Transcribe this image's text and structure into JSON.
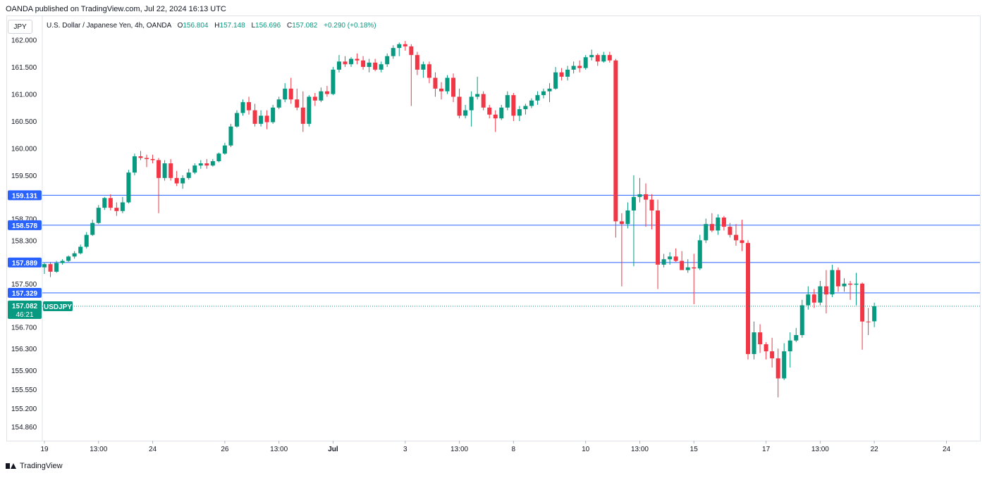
{
  "header": {
    "published": "OANDA published on TradingView.com, Jul 22, 2024 16:13 UTC",
    "currency": "JPY"
  },
  "legend": {
    "title": "U.S. Dollar / Japanese Yen, 4h, OANDA",
    "o_label": "O",
    "o": "156.804",
    "h_label": "H",
    "h": "157.148",
    "l_label": "L",
    "l": "156.696",
    "c_label": "C",
    "c": "157.082",
    "change": "+0.290 (+0.18%)"
  },
  "brand": {
    "name": "TradingView"
  },
  "colors": {
    "up": "#089981",
    "down": "#f23645",
    "level": "#2962ff",
    "grid": "#e0e3eb",
    "text": "#131722"
  },
  "chart_data": {
    "type": "candlestick",
    "symbol": "USDJPY",
    "interval": "4h",
    "ylim": [
      154.6,
      162.45
    ],
    "price_ticks": [
      "162.000",
      "161.500",
      "161.000",
      "160.500",
      "160.000",
      "159.500",
      "158.700",
      "158.300",
      "157.500",
      "156.700",
      "156.300",
      "155.900",
      "155.550",
      "155.200",
      "154.860"
    ],
    "time_ticks": [
      {
        "label": "19",
        "bar": 0
      },
      {
        "label": "13:00",
        "bar": 9
      },
      {
        "label": "24",
        "bar": 18
      },
      {
        "label": "26",
        "bar": 30
      },
      {
        "label": "13:00",
        "bar": 39
      },
      {
        "label": "Jul",
        "bar": 48
      },
      {
        "label": "3",
        "bar": 60
      },
      {
        "label": "13:00",
        "bar": 69
      },
      {
        "label": "8",
        "bar": 78
      },
      {
        "label": "10",
        "bar": 90
      },
      {
        "label": "13:00",
        "bar": 99
      },
      {
        "label": "15",
        "bar": 108
      },
      {
        "label": "17",
        "bar": 120
      },
      {
        "label": "13:00",
        "bar": 129
      },
      {
        "label": "22",
        "bar": 138
      },
      {
        "label": "24",
        "bar": 150
      }
    ],
    "levels": [
      "159.131",
      "158.578",
      "157.889",
      "157.329"
    ],
    "last_price": "157.082",
    "countdown": "46:21",
    "last_label": "USDJPY",
    "candles": [
      [
        157.8,
        157.88,
        157.68,
        157.86
      ],
      [
        157.86,
        157.9,
        157.62,
        157.72
      ],
      [
        157.72,
        157.92,
        157.7,
        157.88
      ],
      [
        157.88,
        157.95,
        157.85,
        157.92
      ],
      [
        157.92,
        158.02,
        157.9,
        158.0
      ],
      [
        158.0,
        158.1,
        157.96,
        158.06
      ],
      [
        158.06,
        158.22,
        158.04,
        158.18
      ],
      [
        158.18,
        158.45,
        158.15,
        158.4
      ],
      [
        158.4,
        158.68,
        158.38,
        158.62
      ],
      [
        158.62,
        158.95,
        158.6,
        158.9
      ],
      [
        158.9,
        159.1,
        158.86,
        159.08
      ],
      [
        159.08,
        159.15,
        158.85,
        158.9
      ],
      [
        158.9,
        159.0,
        158.75,
        158.84
      ],
      [
        158.84,
        159.1,
        158.8,
        159.0
      ],
      [
        159.0,
        159.6,
        158.98,
        159.55
      ],
      [
        159.55,
        159.9,
        159.5,
        159.85
      ],
      [
        159.85,
        159.95,
        159.78,
        159.82
      ],
      [
        159.82,
        159.88,
        159.65,
        159.8
      ],
      [
        159.8,
        159.88,
        159.72,
        159.78
      ],
      [
        159.78,
        159.82,
        158.8,
        159.45
      ],
      [
        159.45,
        159.78,
        159.4,
        159.72
      ],
      [
        159.72,
        159.8,
        159.4,
        159.45
      ],
      [
        159.45,
        159.58,
        159.3,
        159.35
      ],
      [
        159.35,
        159.5,
        159.25,
        159.45
      ],
      [
        159.45,
        159.62,
        159.42,
        159.55
      ],
      [
        159.55,
        159.72,
        159.52,
        159.68
      ],
      [
        159.68,
        159.78,
        159.62,
        159.72
      ],
      [
        159.72,
        159.8,
        159.62,
        159.68
      ],
      [
        159.68,
        159.8,
        159.66,
        159.76
      ],
      [
        159.76,
        159.92,
        159.74,
        159.9
      ],
      [
        159.9,
        160.1,
        159.88,
        160.05
      ],
      [
        160.05,
        160.45,
        160.02,
        160.4
      ],
      [
        160.4,
        160.7,
        160.38,
        160.65
      ],
      [
        160.65,
        160.9,
        160.6,
        160.85
      ],
      [
        160.85,
        160.95,
        160.62,
        160.7
      ],
      [
        160.7,
        160.82,
        160.4,
        160.45
      ],
      [
        160.45,
        160.7,
        160.4,
        160.6
      ],
      [
        160.6,
        160.7,
        160.35,
        160.48
      ],
      [
        160.48,
        160.8,
        160.45,
        160.75
      ],
      [
        160.75,
        160.95,
        160.72,
        160.9
      ],
      [
        160.9,
        161.2,
        160.85,
        161.1
      ],
      [
        161.1,
        161.3,
        160.82,
        160.9
      ],
      [
        160.9,
        161.1,
        160.7,
        160.75
      ],
      [
        160.75,
        161.05,
        160.3,
        160.45
      ],
      [
        160.45,
        160.98,
        160.4,
        160.95
      ],
      [
        160.95,
        161.02,
        160.78,
        160.88
      ],
      [
        160.88,
        161.12,
        160.85,
        161.05
      ],
      [
        161.05,
        161.15,
        160.95,
        161.0
      ],
      [
        161.0,
        161.5,
        160.98,
        161.45
      ],
      [
        161.45,
        161.72,
        161.4,
        161.6
      ],
      [
        161.6,
        161.7,
        161.5,
        161.55
      ],
      [
        161.55,
        161.68,
        161.5,
        161.65
      ],
      [
        161.65,
        161.75,
        161.55,
        161.62
      ],
      [
        161.62,
        161.7,
        161.45,
        161.5
      ],
      [
        161.5,
        161.65,
        161.4,
        161.58
      ],
      [
        161.58,
        161.65,
        161.42,
        161.45
      ],
      [
        161.45,
        161.6,
        161.4,
        161.55
      ],
      [
        161.55,
        161.75,
        161.5,
        161.7
      ],
      [
        161.7,
        161.9,
        161.65,
        161.85
      ],
      [
        161.85,
        161.95,
        161.7,
        161.92
      ],
      [
        161.92,
        161.98,
        161.8,
        161.88
      ],
      [
        161.88,
        161.92,
        160.78,
        161.72
      ],
      [
        161.72,
        161.78,
        161.35,
        161.45
      ],
      [
        161.45,
        161.6,
        161.3,
        161.55
      ],
      [
        161.55,
        161.6,
        161.2,
        161.3
      ],
      [
        161.3,
        161.4,
        160.95,
        161.1
      ],
      [
        161.1,
        161.22,
        160.9,
        161.05
      ],
      [
        161.05,
        161.35,
        161.0,
        161.3
      ],
      [
        161.3,
        161.38,
        160.85,
        160.95
      ],
      [
        160.95,
        161.1,
        160.55,
        160.6
      ],
      [
        160.6,
        160.8,
        160.55,
        160.7
      ],
      [
        160.7,
        161.05,
        160.4,
        160.95
      ],
      [
        160.95,
        161.32,
        160.9,
        161.0
      ],
      [
        161.0,
        161.05,
        160.7,
        160.75
      ],
      [
        160.75,
        160.8,
        160.55,
        160.62
      ],
      [
        160.62,
        160.7,
        160.3,
        160.55
      ],
      [
        160.55,
        160.8,
        160.52,
        160.75
      ],
      [
        160.75,
        161.05,
        160.7,
        160.98
      ],
      [
        160.98,
        161.02,
        160.5,
        160.6
      ],
      [
        160.6,
        160.78,
        160.5,
        160.72
      ],
      [
        160.72,
        160.82,
        160.62,
        160.78
      ],
      [
        160.78,
        160.92,
        160.74,
        160.88
      ],
      [
        160.88,
        161.05,
        160.8,
        160.98
      ],
      [
        160.98,
        161.1,
        160.92,
        161.05
      ],
      [
        161.05,
        161.2,
        160.85,
        161.1
      ],
      [
        161.1,
        161.5,
        161.08,
        161.4
      ],
      [
        161.4,
        161.48,
        161.25,
        161.32
      ],
      [
        161.32,
        161.52,
        161.25,
        161.45
      ],
      [
        161.45,
        161.6,
        161.38,
        161.52
      ],
      [
        161.52,
        161.62,
        161.4,
        161.48
      ],
      [
        161.48,
        161.72,
        161.45,
        161.68
      ],
      [
        161.68,
        161.82,
        161.62,
        161.72
      ],
      [
        161.72,
        161.75,
        161.52,
        161.6
      ],
      [
        161.6,
        161.78,
        161.58,
        161.72
      ],
      [
        161.72,
        161.78,
        161.58,
        161.62
      ],
      [
        161.62,
        161.65,
        158.35,
        158.65
      ],
      [
        158.65,
        158.8,
        157.45,
        158.6
      ],
      [
        158.6,
        159.0,
        158.52,
        158.85
      ],
      [
        158.85,
        159.5,
        157.82,
        159.1
      ],
      [
        159.1,
        159.45,
        159.0,
        159.15
      ],
      [
        159.15,
        159.35,
        158.55,
        159.05
      ],
      [
        159.05,
        159.15,
        158.5,
        158.85
      ],
      [
        158.85,
        159.05,
        157.4,
        157.85
      ],
      [
        157.85,
        158.05,
        157.8,
        157.95
      ],
      [
        157.95,
        158.08,
        157.85,
        158.0
      ],
      [
        158.0,
        158.15,
        157.9,
        157.92
      ],
      [
        157.92,
        158.1,
        157.8,
        157.75
      ],
      [
        157.75,
        157.95,
        157.7,
        157.8
      ],
      [
        157.8,
        158.05,
        157.12,
        157.78
      ],
      [
        157.78,
        158.4,
        157.75,
        158.3
      ],
      [
        158.3,
        158.7,
        158.25,
        158.6
      ],
      [
        158.6,
        158.8,
        158.45,
        158.48
      ],
      [
        158.48,
        158.78,
        158.4,
        158.72
      ],
      [
        158.72,
        158.75,
        158.48,
        158.55
      ],
      [
        158.55,
        158.62,
        158.35,
        158.4
      ],
      [
        158.4,
        158.6,
        158.2,
        158.3
      ],
      [
        158.3,
        158.68,
        158.1,
        158.25
      ],
      [
        158.25,
        158.3,
        156.1,
        156.2
      ],
      [
        156.2,
        156.8,
        156.1,
        156.6
      ],
      [
        156.6,
        156.75,
        156.22,
        156.38
      ],
      [
        156.38,
        156.42,
        156.1,
        156.25
      ],
      [
        156.25,
        156.5,
        155.95,
        156.12
      ],
      [
        156.12,
        156.3,
        155.4,
        155.75
      ],
      [
        155.75,
        156.4,
        155.72,
        156.25
      ],
      [
        156.25,
        156.6,
        155.95,
        156.45
      ],
      [
        156.45,
        156.68,
        156.42,
        156.55
      ],
      [
        156.55,
        157.2,
        156.5,
        157.1
      ],
      [
        157.1,
        157.45,
        157.02,
        157.3
      ],
      [
        157.3,
        157.4,
        157.05,
        157.15
      ],
      [
        157.15,
        157.55,
        157.1,
        157.45
      ],
      [
        157.45,
        157.75,
        156.95,
        157.3
      ],
      [
        157.3,
        157.85,
        157.25,
        157.75
      ],
      [
        157.75,
        157.8,
        157.35,
        157.45
      ],
      [
        157.45,
        157.6,
        157.35,
        157.5
      ],
      [
        157.5,
        157.55,
        157.2,
        157.48
      ],
      [
        157.48,
        157.7,
        157.1,
        157.5
      ],
      [
        157.5,
        157.52,
        156.28,
        156.8
      ],
      [
        156.8,
        157.05,
        156.55,
        156.79
      ],
      [
        156.804,
        157.148,
        156.696,
        157.082
      ]
    ]
  }
}
